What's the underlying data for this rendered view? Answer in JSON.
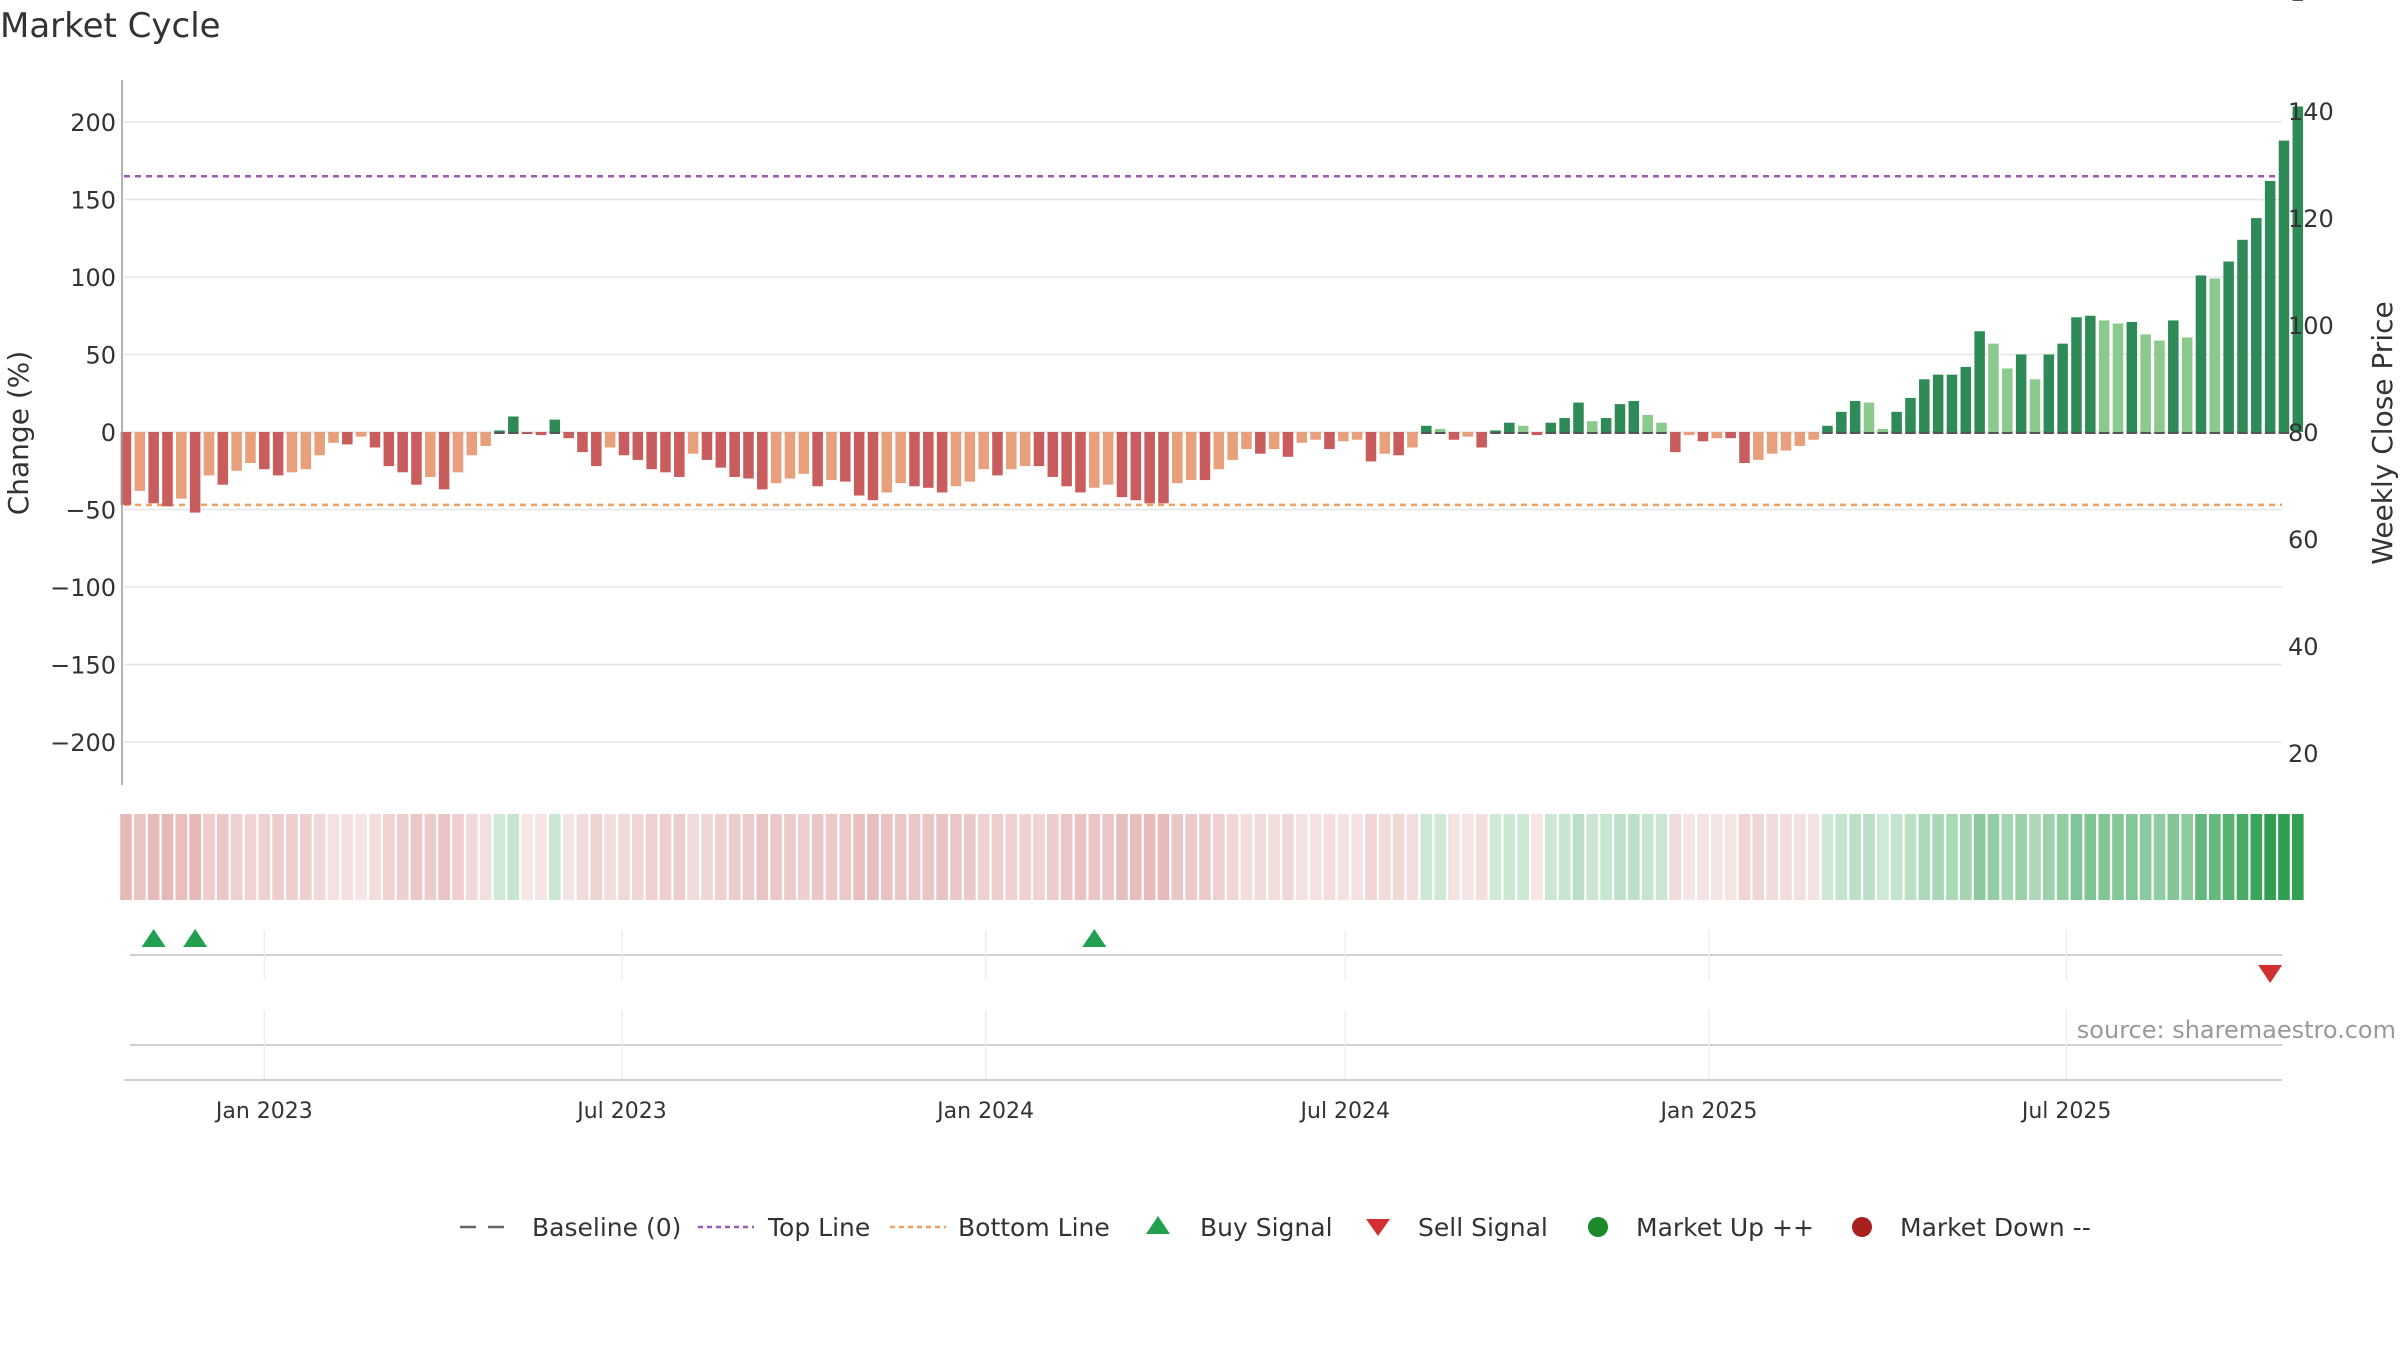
{
  "title": "Market Cycle",
  "source": "source: sharemaestro.com",
  "chart_data": {
    "type": "bar",
    "ylabel_left": "Change (%)",
    "ylabel_right": "Weekly Close Price",
    "ylim_left": [
      -225,
      225
    ],
    "yticks_left": [
      200,
      150,
      100,
      50,
      0,
      -50,
      -100,
      -150,
      -200
    ],
    "ytick_labels_left": [
      "200",
      "150",
      "100",
      "50",
      "0",
      "−50",
      "−100",
      "−150",
      "−200"
    ],
    "yticks_right": [
      "140",
      "120",
      "100",
      "80",
      "60",
      "40",
      "20"
    ],
    "top_line": 165,
    "bottom_line": -47,
    "x_range": [
      "2022-10-22",
      "2025-10-18"
    ],
    "x_ticks": [
      {
        "date": "2023-01-01",
        "label": "Jan 2023"
      },
      {
        "date": "2023-07-01",
        "label": "Jul 2023"
      },
      {
        "date": "2024-01-01",
        "label": "Jan 2024"
      },
      {
        "date": "2024-07-01",
        "label": "Jul 2024"
      },
      {
        "date": "2025-01-01",
        "label": "Jan 2025"
      },
      {
        "date": "2025-07-01",
        "label": "Jul 2025"
      }
    ],
    "series_start_week": "2022-10-23",
    "change_pct": [
      -47,
      -38,
      -46,
      -48,
      -43,
      -52,
      -28,
      -34,
      -25,
      -20,
      -24,
      -28,
      -26,
      -24,
      -15,
      -7,
      -8,
      -3,
      -10,
      -22,
      -26,
      -34,
      -29,
      -37,
      -26,
      -15,
      -9,
      1,
      10,
      -1,
      -2,
      8,
      -4,
      -13,
      -22,
      -10,
      -15,
      -18,
      -24,
      -26,
      -29,
      -14,
      -18,
      -23,
      -29,
      -30,
      -37,
      -33,
      -30,
      -27,
      -35,
      -31,
      -32,
      -41,
      -44,
      -39,
      -33,
      -35,
      -36,
      -39,
      -35,
      -32,
      -24,
      -28,
      -24,
      -22,
      -22,
      -29,
      -35,
      -39,
      -36,
      -34,
      -42,
      -44,
      -46,
      -46,
      -33,
      -31,
      -31,
      -24,
      -18,
      -11,
      -14,
      -11,
      -16,
      -7,
      -5,
      -11,
      -6,
      -5,
      -19,
      -14,
      -15,
      -10,
      4,
      2,
      -5,
      -3,
      -10,
      1,
      6,
      4,
      -2,
      6,
      9,
      19,
      7,
      9,
      18,
      20,
      11,
      6,
      -13,
      -2,
      -6,
      -4,
      -4,
      -20,
      -18,
      -14,
      -12,
      -9,
      -5,
      4,
      13,
      20,
      19,
      2,
      13,
      22,
      34,
      37,
      37,
      42,
      65,
      57,
      41,
      50,
      34,
      50,
      57,
      74,
      75,
      72,
      70,
      71,
      63,
      59,
      72,
      61,
      101,
      99,
      110,
      124,
      138,
      162,
      188,
      210
    ],
    "weekly_close_price": [
      80,
      80,
      80,
      80,
      80,
      80,
      80,
      80,
      80,
      80,
      80,
      80,
      80,
      80,
      80,
      80,
      80,
      80,
      80,
      80,
      80,
      80,
      80,
      80,
      80,
      80,
      80,
      80,
      80,
      80,
      80,
      80,
      80,
      80,
      80,
      80,
      80,
      80,
      80,
      80,
      80,
      80,
      80,
      80,
      80,
      80,
      80,
      80,
      80,
      80,
      80,
      80,
      80,
      80,
      80,
      80,
      80,
      80,
      80,
      80,
      80,
      80,
      80,
      80,
      80,
      80,
      80,
      80,
      80,
      80,
      80,
      80,
      80,
      80,
      80,
      80,
      80,
      80,
      80,
      80,
      80,
      80,
      80,
      80,
      80,
      80,
      80,
      80,
      80,
      80,
      80,
      80,
      80,
      80,
      80,
      80,
      80,
      80,
      80,
      80,
      80,
      80,
      80,
      80,
      80,
      80,
      80,
      80,
      80,
      80,
      80,
      80,
      80,
      80,
      80,
      80,
      80,
      80,
      80,
      80,
      80,
      80,
      80,
      80,
      80,
      80,
      80,
      80,
      80,
      80,
      80,
      80,
      80,
      80,
      80,
      80,
      80,
      80,
      80,
      80,
      80,
      80,
      80,
      80,
      80,
      80,
      80,
      80,
      80,
      80,
      80,
      80,
      80,
      80,
      80,
      80,
      80
    ],
    "colors": {
      "strong_down": "#c95c5c",
      "mild_down": "#e8a07c",
      "strong_up": "#2e8b57",
      "mild_up": "#8cc98c",
      "top_line": "#9b59b6",
      "bottom_line": "#f0a060",
      "buy": "#22a050",
      "sell": "#d03030",
      "market_up": "#1a8a2a",
      "market_down": "#a82020"
    },
    "buy_signals": [
      "2022-11-06",
      "2022-11-27",
      "2024-02-25"
    ],
    "sell_signals": [
      "2025-10-12"
    ],
    "legend_position": "bottom",
    "legend": [
      {
        "key": "baseline",
        "label": "Baseline (0)"
      },
      {
        "key": "top",
        "label": "Top Line"
      },
      {
        "key": "bottom",
        "label": "Bottom Line"
      },
      {
        "key": "buy",
        "label": "Buy Signal"
      },
      {
        "key": "sell",
        "label": "Sell Signal"
      },
      {
        "key": "up",
        "label": "Market Up ++"
      },
      {
        "key": "down",
        "label": "Market Down --"
      }
    ]
  }
}
